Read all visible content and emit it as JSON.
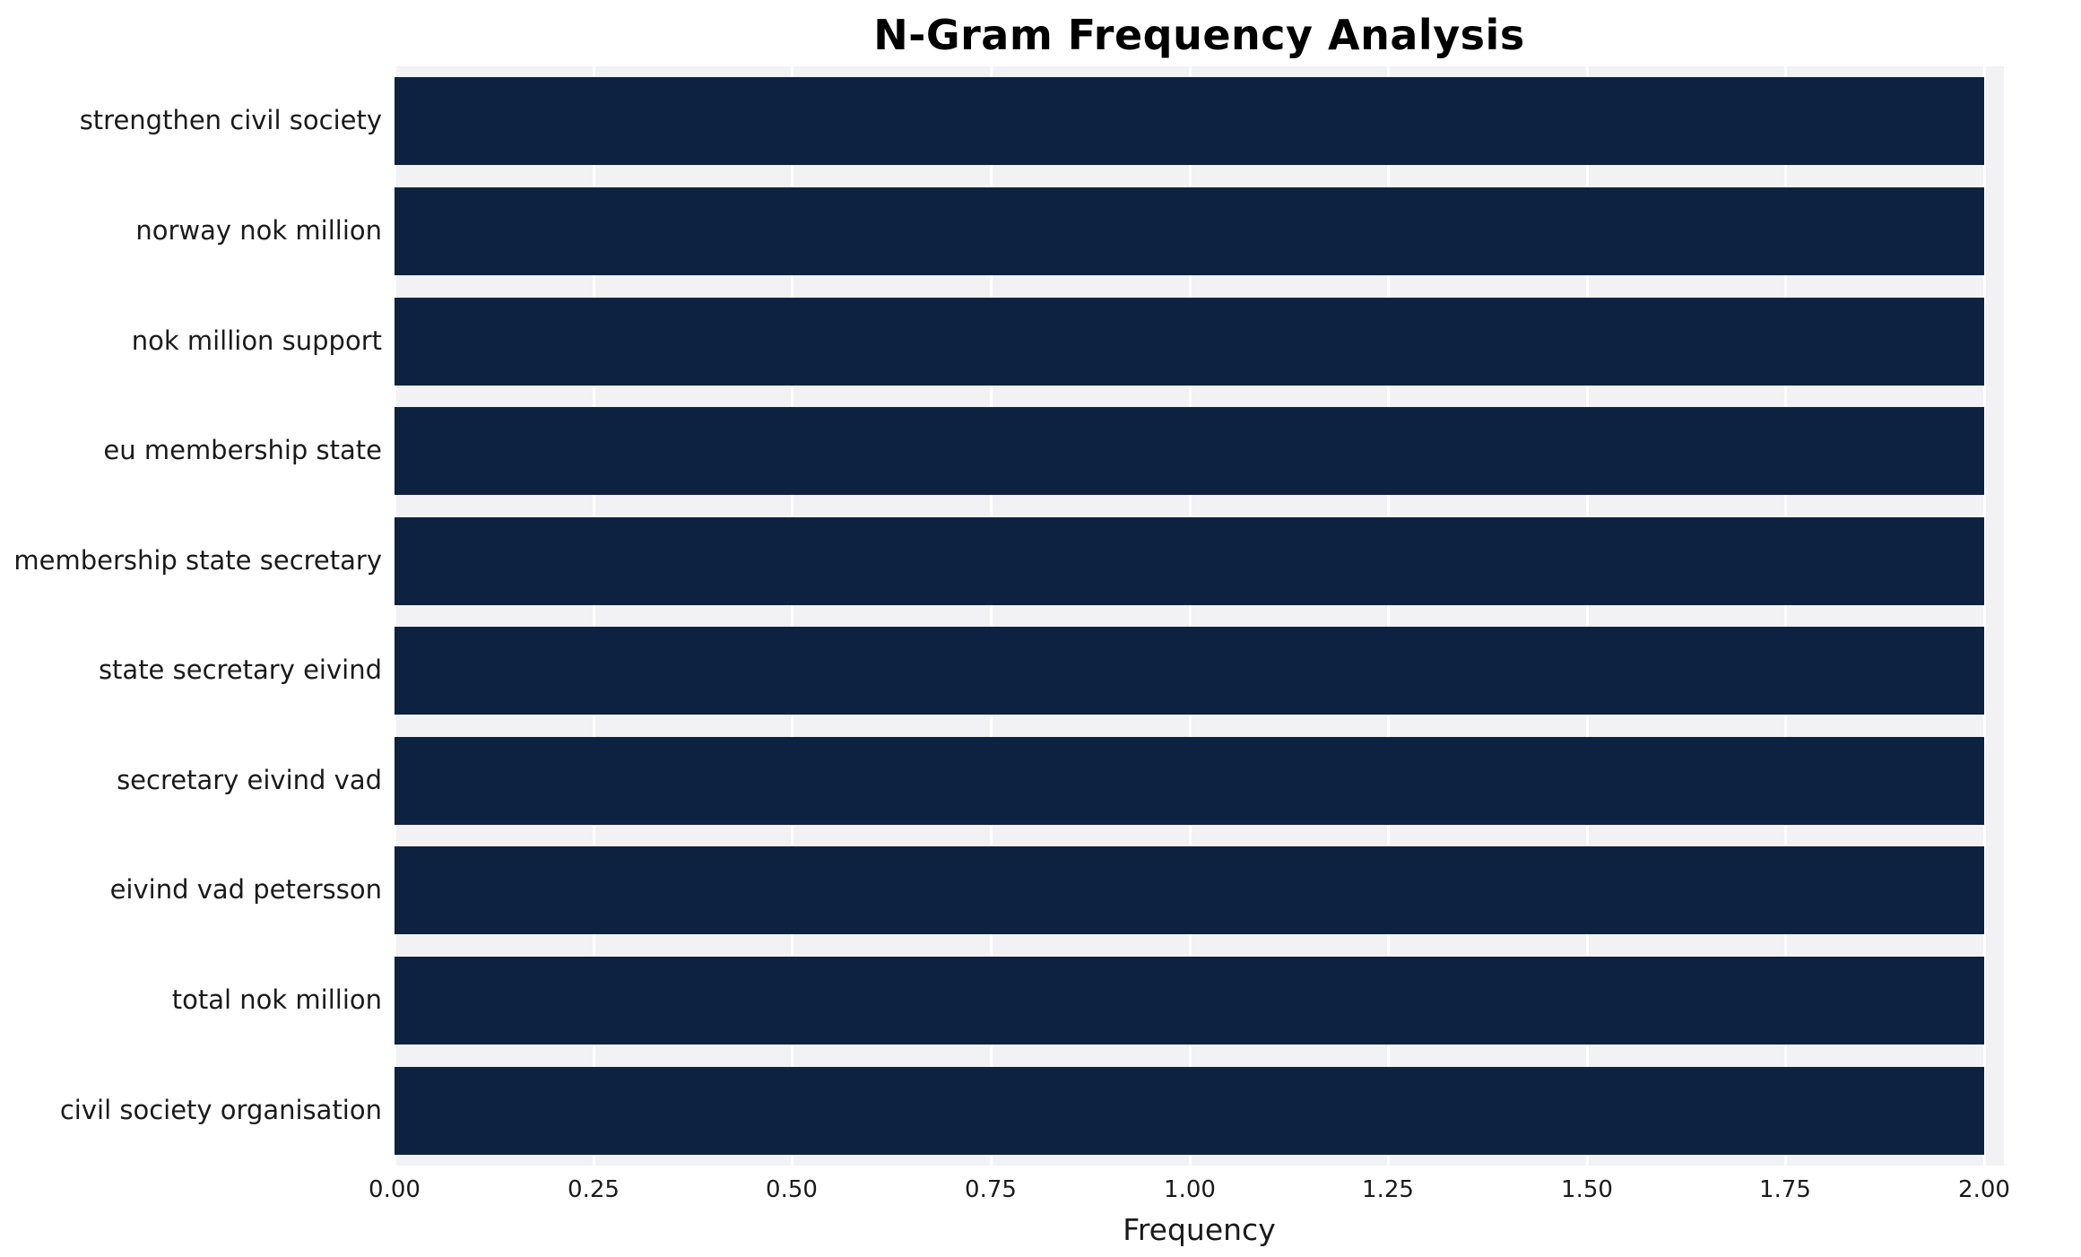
{
  "chart_data": {
    "type": "bar",
    "orientation": "horizontal",
    "title": "N-Gram Frequency Analysis",
    "xlabel": "Frequency",
    "ylabel": "",
    "categories": [
      "strengthen civil society",
      "norway nok million",
      "nok million support",
      "eu membership state",
      "membership state secretary",
      "state secretary eivind",
      "secretary eivind vad",
      "eivind vad petersson",
      "total nok million",
      "civil society organisation"
    ],
    "values": [
      2,
      2,
      2,
      2,
      2,
      2,
      2,
      2,
      2,
      2
    ],
    "xlim": [
      0,
      2.0
    ],
    "xticks": [
      0,
      0.25,
      0.5,
      0.75,
      1.0,
      1.25,
      1.5,
      1.75,
      2.0
    ],
    "xtick_labels": [
      "0.00",
      "0.25",
      "0.50",
      "0.75",
      "1.00",
      "1.25",
      "1.50",
      "1.75",
      "2.00"
    ],
    "bar_color": "#0d2240",
    "plot_background": "#f2f2f4",
    "grid": true,
    "grid_color": "#ffffff",
    "legend_position": "none"
  }
}
